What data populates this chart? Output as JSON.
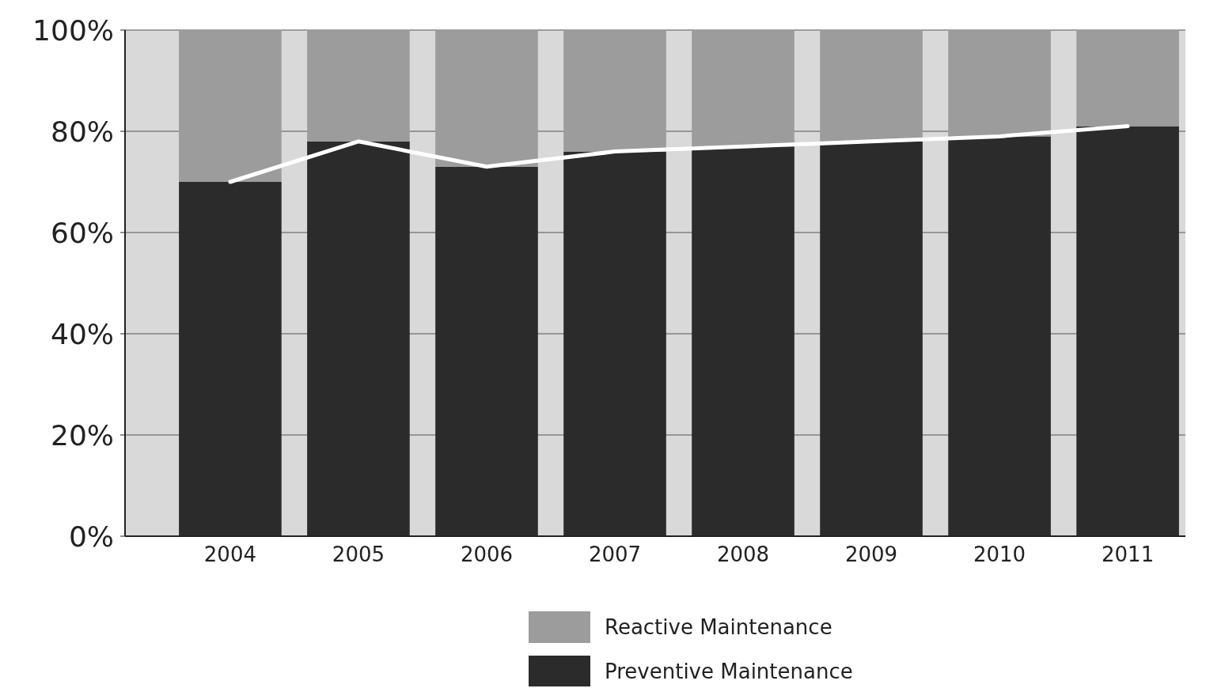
{
  "chart_data": {
    "type": "bar",
    "stacked": true,
    "categories": [
      "2004",
      "2005",
      "2006",
      "2007",
      "2008",
      "2009",
      "2010",
      "2011"
    ],
    "series": [
      {
        "name": "Preventive Maintenance",
        "color": "#2b2b2b",
        "values": [
          70,
          78,
          73,
          76,
          77,
          78,
          79,
          81
        ]
      },
      {
        "name": "Reactive Maintenance",
        "color": "#9c9c9c",
        "values": [
          30,
          22,
          27,
          24,
          23,
          22,
          21,
          19
        ]
      },
      {
        "type": "line",
        "color": "#ffffff",
        "values": [
          70,
          78,
          73,
          76,
          77,
          78,
          79,
          81
        ]
      }
    ],
    "ylim": [
      0,
      100
    ],
    "yticks": [
      {
        "value": 0,
        "label": "0%"
      },
      {
        "value": 20,
        "label": "20%"
      },
      {
        "value": 40,
        "label": "40%"
      },
      {
        "value": 60,
        "label": "60%"
      },
      {
        "value": 80,
        "label": "80%"
      },
      {
        "value": 100,
        "label": "100%"
      }
    ],
    "grid": "y",
    "legend": "bottom"
  }
}
